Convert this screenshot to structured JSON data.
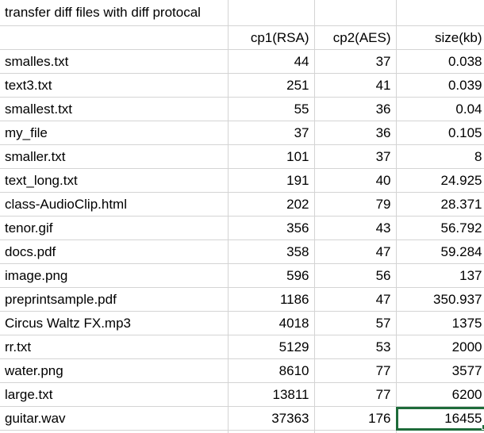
{
  "sheet": {
    "title": "transfer diff files with diff protocal",
    "headers": [
      "",
      "cp1(RSA)",
      "cp2(AES)",
      "size(kb)"
    ],
    "rows": [
      {
        "name": "smalles.txt",
        "cp1": "44",
        "cp2": "37",
        "size": "0.038"
      },
      {
        "name": "text3.txt",
        "cp1": "251",
        "cp2": "41",
        "size": "0.039"
      },
      {
        "name": "smallest.txt",
        "cp1": "55",
        "cp2": "36",
        "size": "0.04"
      },
      {
        "name": "my_file",
        "cp1": "37",
        "cp2": "36",
        "size": "0.105"
      },
      {
        "name": "smaller.txt",
        "cp1": "101",
        "cp2": "37",
        "size": "8"
      },
      {
        "name": "text_long.txt",
        "cp1": "191",
        "cp2": "40",
        "size": "24.925"
      },
      {
        "name": "class-AudioClip.html",
        "cp1": "202",
        "cp2": "79",
        "size": "28.371"
      },
      {
        "name": "tenor.gif",
        "cp1": "356",
        "cp2": "43",
        "size": "56.792"
      },
      {
        "name": "docs.pdf",
        "cp1": "358",
        "cp2": "47",
        "size": "59.284"
      },
      {
        "name": "image.png",
        "cp1": "596",
        "cp2": "56",
        "size": "137"
      },
      {
        "name": "preprintsample.pdf",
        "cp1": "1186",
        "cp2": "47",
        "size": "350.937"
      },
      {
        "name": "Circus Waltz FX.mp3",
        "cp1": "4018",
        "cp2": "57",
        "size": "1375"
      },
      {
        "name": "rr.txt",
        "cp1": "5129",
        "cp2": "53",
        "size": "2000"
      },
      {
        "name": "water.png",
        "cp1": "8610",
        "cp2": "77",
        "size": "3577"
      },
      {
        "name": "large.txt",
        "cp1": "13811",
        "cp2": "77",
        "size": "6200"
      },
      {
        "name": "guitar.wav",
        "cp1": "37363",
        "cp2": "176",
        "size": "16455"
      }
    ],
    "selected_cell": {
      "row": 15,
      "col": "size"
    },
    "colors": {
      "gridline": "#d4d4d4",
      "selection": "#1e6b3a",
      "text": "#000000",
      "background": "#ffffff"
    }
  }
}
